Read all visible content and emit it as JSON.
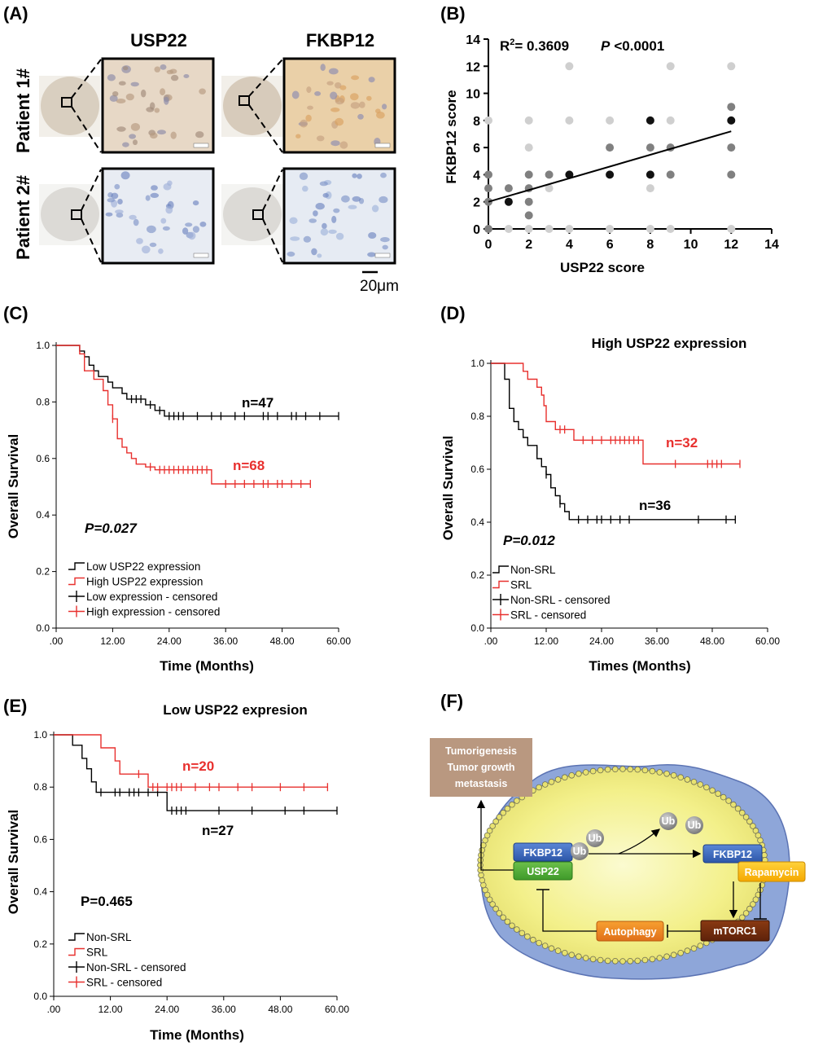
{
  "panel_a": {
    "label": "(A)",
    "col_headers": [
      "USP22",
      "FKBP12"
    ],
    "row_labels": [
      "Patient 1#",
      "Patient 2#"
    ],
    "scale_bar": "20μm"
  },
  "panel_b": {
    "label": "(B)",
    "r2_text": "R",
    "r2_sup": "2",
    "r2_value": "= 0.3609",
    "p_label": "P",
    "p_value": "<0.0001",
    "xlabel": "USP22 score",
    "ylabel": "FKBP12 score",
    "xticks": [
      "0",
      "2",
      "4",
      "6",
      "8",
      "10",
      "12",
      "14"
    ],
    "yticks": [
      "0",
      "2",
      "4",
      "6",
      "8",
      "10",
      "12",
      "14"
    ]
  },
  "panel_c": {
    "label": "(C)",
    "xlabel": "Time (Months)",
    "ylabel": "Overall Survival",
    "p_text": "P=0.027",
    "n_low": "n=47",
    "n_high": "n=68",
    "legend": [
      "Low USP22 expression",
      "High USP22 expression",
      "Low expression - censored",
      "High expression - censored"
    ]
  },
  "panel_d": {
    "label": "(D)",
    "title": "High USP22 expression",
    "xlabel": "Times (Months)",
    "ylabel": "Overall Survival",
    "p_text": "P=0.012",
    "n_nonsrl": "n=36",
    "n_srl": "n=32",
    "legend": [
      "Non-SRL",
      "SRL",
      "Non-SRL - censored",
      "SRL - censored"
    ]
  },
  "panel_e": {
    "label": "(E)",
    "title": "Low USP22 expresion",
    "xlabel": "Time (Months)",
    "ylabel": "Overall Survival",
    "p_text": "P=0.465",
    "n_nonsrl": "n=27",
    "n_srl": "n=20",
    "legend": [
      "Non-SRL",
      "SRL",
      "Non-SRL - censored",
      "SRL - censored"
    ]
  },
  "panel_f": {
    "label": "(F)",
    "outcome_lines": [
      "Tumorigenesis",
      "Tumor growth",
      "metastasis"
    ],
    "fkbp12": "FKBP12",
    "usp22": "USP22",
    "ub": "Ub",
    "rapamycin": "Rapamycin",
    "mtorc1": "mTORC1",
    "autophagy": "Autophagy"
  },
  "km_xticks": [
    ".00",
    "12.00",
    "24.00",
    "36.00",
    "48.00",
    "60.00"
  ],
  "km_yticks": [
    "0.0",
    "0.2",
    "0.4",
    "0.6",
    "0.8",
    "1.0"
  ],
  "colors": {
    "black": "#000000",
    "red": "#e8302e"
  },
  "chart_data": [
    {
      "type": "scatter",
      "panel": "B",
      "xlabel": "USP22 score",
      "ylabel": "FKBP12 score",
      "xlim": [
        0,
        14
      ],
      "ylim": [
        0,
        14
      ],
      "grid": false,
      "points": [
        [
          0,
          0
        ],
        [
          0,
          2
        ],
        [
          0,
          3
        ],
        [
          0,
          4
        ],
        [
          0,
          8
        ],
        [
          1,
          0
        ],
        [
          1,
          2
        ],
        [
          1,
          3
        ],
        [
          2,
          0
        ],
        [
          2,
          1
        ],
        [
          2,
          2
        ],
        [
          2,
          3
        ],
        [
          2,
          4
        ],
        [
          2,
          6
        ],
        [
          2,
          8
        ],
        [
          3,
          0
        ],
        [
          3,
          3
        ],
        [
          3,
          4
        ],
        [
          4,
          0
        ],
        [
          4,
          4
        ],
        [
          4,
          8
        ],
        [
          4,
          12
        ],
        [
          6,
          0
        ],
        [
          6,
          4
        ],
        [
          6,
          6
        ],
        [
          6,
          8
        ],
        [
          8,
          0
        ],
        [
          8,
          3
        ],
        [
          8,
          4
        ],
        [
          8,
          6
        ],
        [
          8,
          8
        ],
        [
          9,
          0
        ],
        [
          9,
          4
        ],
        [
          9,
          6
        ],
        [
          9,
          8
        ],
        [
          9,
          12
        ],
        [
          12,
          0
        ],
        [
          12,
          4
        ],
        [
          12,
          6
        ],
        [
          12,
          8
        ],
        [
          12,
          9
        ],
        [
          12,
          12
        ]
      ],
      "fit_line": {
        "x": [
          0,
          12
        ],
        "y": [
          2.0,
          7.2
        ]
      }
    },
    {
      "type": "line",
      "panel": "C",
      "xlabel": "Time (Months)",
      "ylabel": "Overall Survival",
      "xlim": [
        0,
        60
      ],
      "ylim": [
        0,
        1.0
      ],
      "series": [
        {
          "name": "Low USP22 expression",
          "color": "#000000",
          "steps": [
            [
              0,
              1.0
            ],
            [
              5,
              0.98
            ],
            [
              6,
              0.96
            ],
            [
              7,
              0.93
            ],
            [
              8,
              0.91
            ],
            [
              9,
              0.89
            ],
            [
              11,
              0.87
            ],
            [
              12,
              0.85
            ],
            [
              14,
              0.83
            ],
            [
              15,
              0.81
            ],
            [
              19,
              0.79
            ],
            [
              21,
              0.77
            ],
            [
              23,
              0.75
            ]
          ],
          "end": 60,
          "censored": [
            [
              16,
              0.81
            ],
            [
              17,
              0.81
            ],
            [
              18,
              0.81
            ],
            [
              20,
              0.79
            ],
            [
              22,
              0.77
            ],
            [
              24,
              0.75
            ],
            [
              25,
              0.75
            ],
            [
              26,
              0.75
            ],
            [
              27,
              0.75
            ],
            [
              30,
              0.75
            ],
            [
              33,
              0.75
            ],
            [
              35,
              0.75
            ],
            [
              38,
              0.75
            ],
            [
              40,
              0.75
            ],
            [
              44,
              0.75
            ],
            [
              45,
              0.75
            ],
            [
              47,
              0.75
            ],
            [
              50,
              0.75
            ],
            [
              51,
              0.75
            ],
            [
              53,
              0.75
            ],
            [
              56,
              0.75
            ],
            [
              60,
              0.75
            ]
          ]
        },
        {
          "name": "High USP22 expression",
          "color": "#e8302e",
          "steps": [
            [
              0,
              1.0
            ],
            [
              5,
              0.97
            ],
            [
              6,
              0.91
            ],
            [
              8,
              0.88
            ],
            [
              10,
              0.84
            ],
            [
              11,
              0.79
            ],
            [
              12,
              0.74
            ],
            [
              13,
              0.67
            ],
            [
              14,
              0.64
            ],
            [
              15,
              0.62
            ],
            [
              16,
              0.6
            ],
            [
              17,
              0.58
            ],
            [
              19,
              0.57
            ],
            [
              21,
              0.56
            ],
            [
              33,
              0.51
            ]
          ],
          "end": 54,
          "censored": [
            [
              12,
              0.74
            ],
            [
              20,
              0.57
            ],
            [
              22,
              0.56
            ],
            [
              23,
              0.56
            ],
            [
              24,
              0.56
            ],
            [
              25,
              0.56
            ],
            [
              26,
              0.56
            ],
            [
              27,
              0.56
            ],
            [
              28,
              0.56
            ],
            [
              29,
              0.56
            ],
            [
              30,
              0.56
            ],
            [
              31,
              0.56
            ],
            [
              32,
              0.56
            ],
            [
              36,
              0.51
            ],
            [
              38,
              0.51
            ],
            [
              40,
              0.51
            ],
            [
              42,
              0.51
            ],
            [
              44,
              0.51
            ],
            [
              45,
              0.51
            ],
            [
              47,
              0.51
            ],
            [
              48,
              0.51
            ],
            [
              50,
              0.51
            ],
            [
              52,
              0.51
            ],
            [
              54,
              0.51
            ]
          ]
        }
      ]
    },
    {
      "type": "line",
      "panel": "D",
      "title": "High USP22 expression",
      "xlabel": "Times (Months)",
      "ylabel": "Overall Survival",
      "xlim": [
        0,
        60
      ],
      "ylim": [
        0,
        1.0
      ],
      "series": [
        {
          "name": "Non-SRL",
          "color": "#000000",
          "steps": [
            [
              0,
              1.0
            ],
            [
              3,
              0.94
            ],
            [
              4,
              0.83
            ],
            [
              5,
              0.78
            ],
            [
              6,
              0.75
            ],
            [
              7,
              0.72
            ],
            [
              8,
              0.69
            ],
            [
              10,
              0.64
            ],
            [
              11,
              0.61
            ],
            [
              12,
              0.58
            ],
            [
              13,
              0.53
            ],
            [
              14,
              0.5
            ],
            [
              15,
              0.47
            ],
            [
              16,
              0.44
            ],
            [
              17,
              0.41
            ]
          ],
          "end": 53,
          "censored": [
            [
              10,
              0.67
            ],
            [
              12,
              0.58
            ],
            [
              13,
              0.55
            ],
            [
              15,
              0.47
            ],
            [
              19,
              0.41
            ],
            [
              21,
              0.41
            ],
            [
              23,
              0.41
            ],
            [
              24,
              0.41
            ],
            [
              26,
              0.41
            ],
            [
              28,
              0.41
            ],
            [
              30,
              0.41
            ],
            [
              45,
              0.41
            ],
            [
              51,
              0.41
            ],
            [
              53,
              0.41
            ]
          ]
        },
        {
          "name": "SRL",
          "color": "#e8302e",
          "steps": [
            [
              0,
              1.0
            ],
            [
              7,
              0.97
            ],
            [
              8,
              0.94
            ],
            [
              10,
              0.91
            ],
            [
              11,
              0.88
            ],
            [
              11.5,
              0.84
            ],
            [
              12,
              0.78
            ],
            [
              14,
              0.75
            ],
            [
              18,
              0.71
            ],
            [
              33,
              0.62
            ]
          ],
          "end": 54,
          "censored": [
            [
              15,
              0.75
            ],
            [
              16,
              0.75
            ],
            [
              20,
              0.71
            ],
            [
              22,
              0.71
            ],
            [
              24,
              0.71
            ],
            [
              26,
              0.71
            ],
            [
              27,
              0.71
            ],
            [
              28,
              0.71
            ],
            [
              29,
              0.71
            ],
            [
              30,
              0.71
            ],
            [
              31,
              0.71
            ],
            [
              32,
              0.71
            ],
            [
              40,
              0.62
            ],
            [
              47,
              0.62
            ],
            [
              48,
              0.62
            ],
            [
              49,
              0.62
            ],
            [
              50,
              0.62
            ],
            [
              54,
              0.62
            ]
          ]
        }
      ]
    },
    {
      "type": "line",
      "panel": "E",
      "title": "Low USP22 expresion",
      "xlabel": "Time (Months)",
      "ylabel": "Overall Survival",
      "xlim": [
        0,
        60
      ],
      "ylim": [
        0,
        1.0
      ],
      "series": [
        {
          "name": "Non-SRL",
          "color": "#000000",
          "steps": [
            [
              0,
              1.0
            ],
            [
              4,
              0.96
            ],
            [
              6,
              0.91
            ],
            [
              7,
              0.87
            ],
            [
              8,
              0.82
            ],
            [
              9,
              0.78
            ],
            [
              24,
              0.71
            ]
          ],
          "end": 60,
          "censored": [
            [
              10,
              0.78
            ],
            [
              13,
              0.78
            ],
            [
              14,
              0.78
            ],
            [
              16,
              0.78
            ],
            [
              17,
              0.78
            ],
            [
              18,
              0.78
            ],
            [
              20,
              0.78
            ],
            [
              22,
              0.78
            ],
            [
              25,
              0.71
            ],
            [
              26,
              0.71
            ],
            [
              27,
              0.71
            ],
            [
              28,
              0.71
            ],
            [
              35,
              0.71
            ],
            [
              42,
              0.71
            ],
            [
              49,
              0.71
            ],
            [
              53,
              0.71
            ],
            [
              60,
              0.71
            ]
          ]
        },
        {
          "name": "SRL",
          "color": "#e8302e",
          "steps": [
            [
              0,
              1.0
            ],
            [
              10,
              0.95
            ],
            [
              13,
              0.9
            ],
            [
              14,
              0.85
            ],
            [
              20,
              0.8
            ]
          ],
          "end": 58,
          "censored": [
            [
              18,
              0.85
            ],
            [
              21,
              0.8
            ],
            [
              22,
              0.8
            ],
            [
              24,
              0.8
            ],
            [
              25,
              0.8
            ],
            [
              26,
              0.8
            ],
            [
              27,
              0.8
            ],
            [
              30,
              0.8
            ],
            [
              33,
              0.8
            ],
            [
              35,
              0.8
            ],
            [
              39,
              0.8
            ],
            [
              42,
              0.8
            ],
            [
              48,
              0.8
            ],
            [
              53,
              0.8
            ],
            [
              58,
              0.8
            ]
          ]
        }
      ]
    }
  ]
}
